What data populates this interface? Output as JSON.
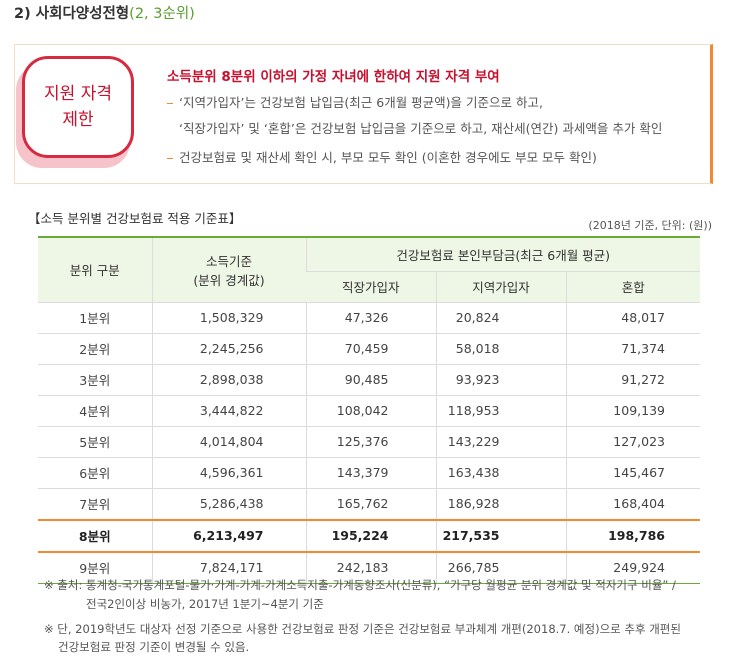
{
  "heading": {
    "title": "2) 사회다양성전형",
    "sub": "(2, 3순위)"
  },
  "badge": {
    "lines": [
      "지원 자격",
      "제한"
    ]
  },
  "box": {
    "title": "소득분위 8분위 이하의 가정 자녀에 한하여 지원 자격 부여",
    "items": [
      [
        "‘지역가입자’는 건강보험 납입금(최근 6개월 평균액)을 기준으로 하고,",
        "‘직장가입자’ 및 ‘혼합’은 건강보험 납입금을 기준으로 하고, 재산세(연간) 과세액을 추가 확인"
      ],
      [
        "건강보험료 및 재산세 확인 시, 부모 모두 확인 (이혼한 경우에도 부모 모두 확인)"
      ]
    ]
  },
  "table": {
    "title": "【소득 분위별 건강보험료 적용 기준표】",
    "unit": "(2018년 기준, 단위: (원))",
    "headers": {
      "col1": "분위 구분",
      "col2": [
        "소득기준",
        "(분위 경계값)"
      ],
      "group": "건강보험료 본인부담금(최근 6개월 평균)",
      "sub": [
        "직장가입자",
        "지역가입자",
        "혼합"
      ]
    },
    "rows": [
      [
        "1분위",
        "1,508,329",
        "47,326",
        "20,824",
        "48,017"
      ],
      [
        "2분위",
        "2,245,256",
        "70,459",
        "58,018",
        "71,374"
      ],
      [
        "3분위",
        "2,898,038",
        "90,485",
        "93,923",
        "91,272"
      ],
      [
        "4분위",
        "3,444,822",
        "108,042",
        "118,953",
        "109,139"
      ],
      [
        "5분위",
        "4,014,804",
        "125,376",
        "143,229",
        "127,023"
      ],
      [
        "6분위",
        "4,596,361",
        "143,379",
        "163,438",
        "145,467"
      ],
      [
        "7분위",
        "5,286,438",
        "165,762",
        "186,928",
        "168,404"
      ],
      [
        "8분위",
        "6,213,497",
        "195,224",
        "217,535",
        "198,786"
      ],
      [
        "9분위",
        "7,824,171",
        "242,183",
        "266,785",
        "249,924"
      ]
    ]
  },
  "notes": [
    [
      "※ 출처: 통계청-국가통계포털-물가·가계-가계-가계소득지출-가계동향조사(신분류), “가구당 월평균 분위 경계값 및 적자기구 비율” /",
      "전국2인이상 비농가, 2017년 1분기~4분기 기준"
    ],
    [
      "※ 단, 2019학년도 대상자 선정 기준으로 사용한 건강보험료 판정 기준은 건강보험료 부과체계 개편(2018.7. 예정)으로 추후 개편된",
      "건강보험료 판정 기준이 변경될 수 있음."
    ]
  ]
}
